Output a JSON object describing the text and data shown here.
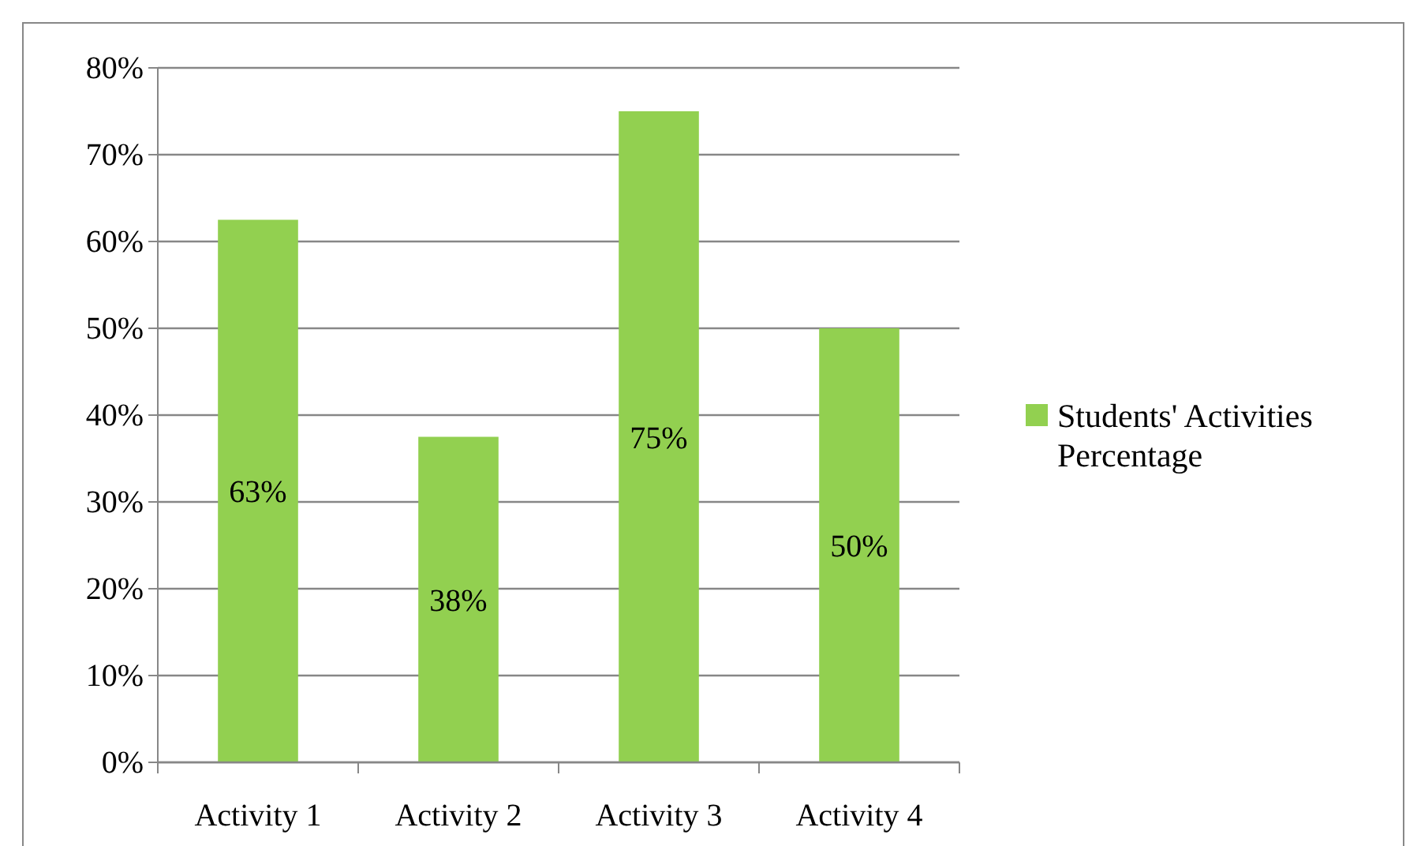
{
  "chart_data": {
    "type": "bar",
    "categories": [
      "Activity 1",
      "Activity 2",
      "Activity 3",
      "Activity 4"
    ],
    "series": [
      {
        "name": "Students' Activities Percentage",
        "color": "#92d050",
        "values": [
          62.5,
          37.5,
          75,
          50
        ],
        "value_labels": [
          "63%",
          "38%",
          "75%",
          "50%"
        ]
      }
    ],
    "ylim": [
      0,
      80
    ],
    "yticks": [
      {
        "value": 0,
        "label": "0%"
      },
      {
        "value": 10,
        "label": "10%"
      },
      {
        "value": 20,
        "label": "20%"
      },
      {
        "value": 30,
        "label": "30%"
      },
      {
        "value": 40,
        "label": "40%"
      },
      {
        "value": 50,
        "label": "50%"
      },
      {
        "value": 60,
        "label": "60%"
      },
      {
        "value": 70,
        "label": "70%"
      },
      {
        "value": 80,
        "label": "80%"
      }
    ],
    "grid": "y",
    "legend": "right"
  }
}
